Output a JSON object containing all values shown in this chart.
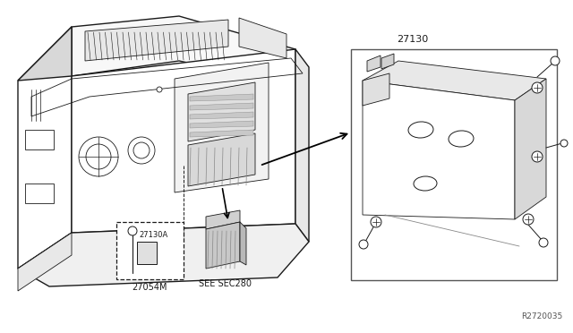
{
  "bg_color": "#ffffff",
  "lc": "#1a1a1a",
  "lc_light": "#555555",
  "label_27130": "27130",
  "label_27054M": "27054M",
  "label_27130A": "27130A",
  "label_see_sec280": "SEE SEC280",
  "label_ref": "R2720035",
  "figsize": [
    6.4,
    3.72
  ],
  "dpi": 100
}
